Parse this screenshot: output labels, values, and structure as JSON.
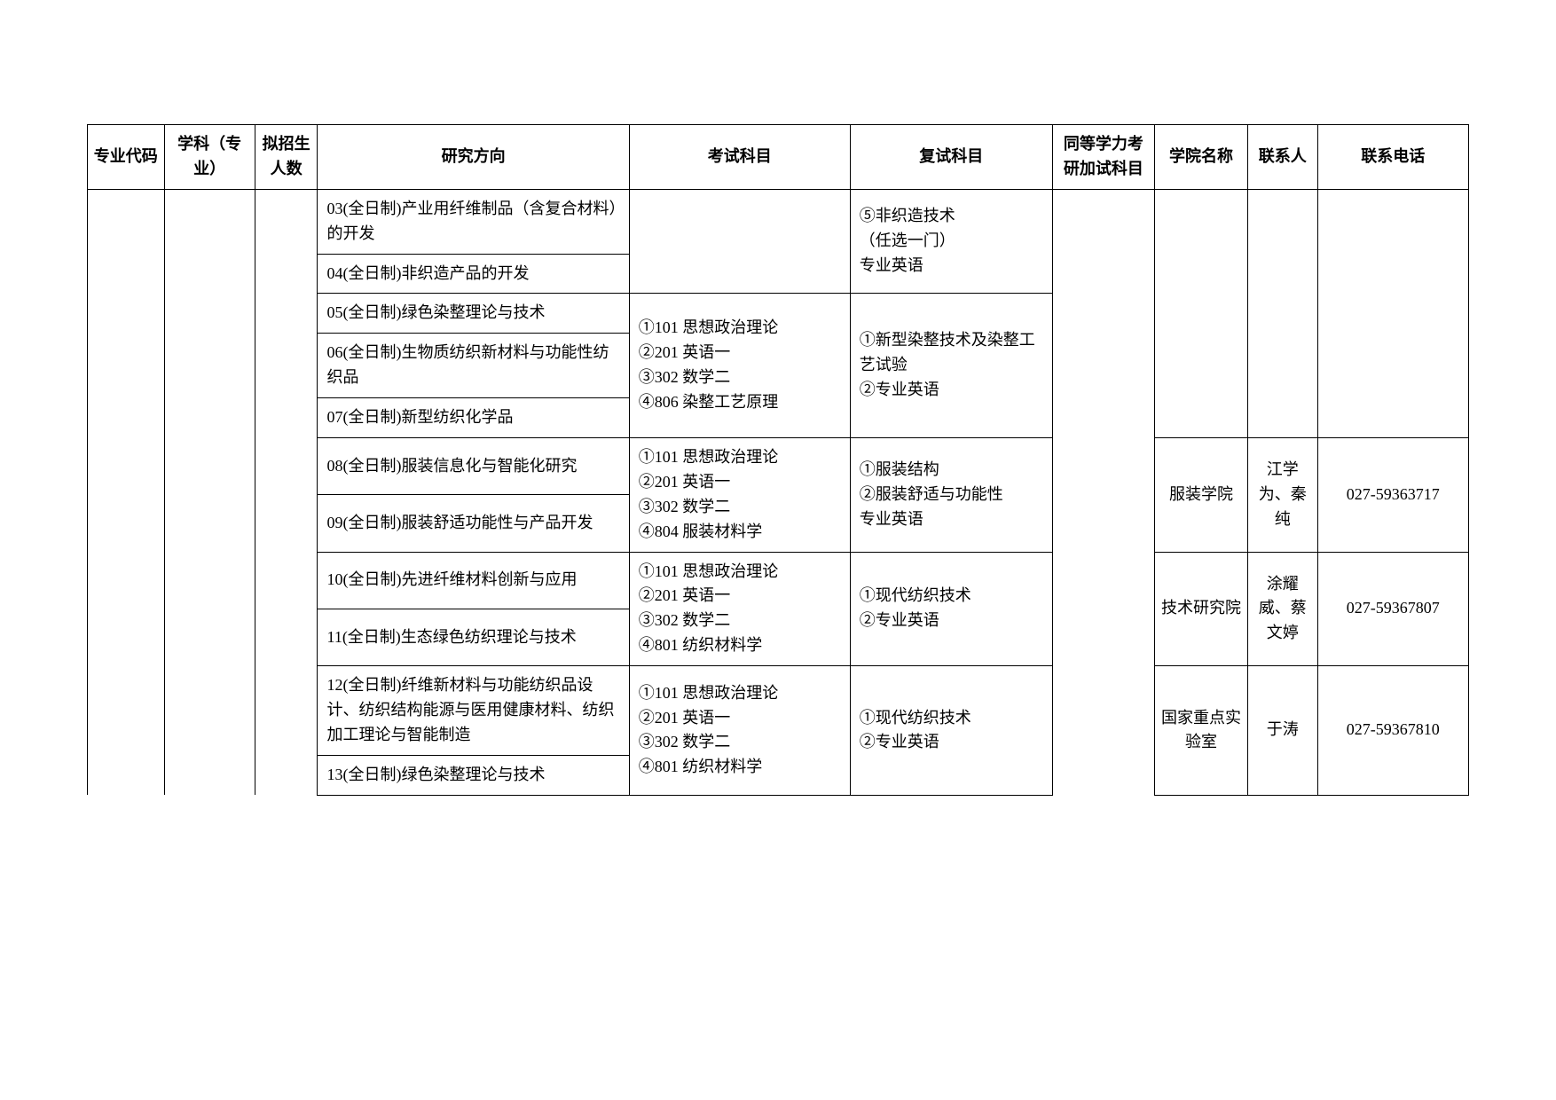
{
  "headers": {
    "code": "专业代码",
    "subject": "学科（专业）",
    "quota": "拟招生人数",
    "direction": "研究方向",
    "exam": "考试科目",
    "retest": "复试科目",
    "extra": "同等学力考研加试科目",
    "college": "学院名称",
    "contact": "联系人",
    "phone": "联系电话"
  },
  "rows": {
    "r1": {
      "direction": "03(全日制)产业用纤维制品（含复合材料）的开发",
      "retest": "⑤非织造技术\n（任选一门）\n专业英语"
    },
    "r2": {
      "direction": "04(全日制)非织造产品的开发"
    },
    "r3": {
      "direction": "05(全日制)绿色染整理论与技术",
      "exam": "①101 思想政治理论\n②201 英语一\n③302 数学二\n④806 染整工艺原理",
      "retest": "①新型染整技术及染整工艺试验\n②专业英语"
    },
    "r4": {
      "direction": "06(全日制)生物质纺织新材料与功能性纺织品"
    },
    "r5": {
      "direction": "07(全日制)新型纺织化学品"
    },
    "r6": {
      "direction": "08(全日制)服装信息化与智能化研究",
      "exam": "①101 思想政治理论\n②201 英语一\n③302 数学二\n④804 服装材料学",
      "retest": "①服装结构\n②服装舒适与功能性\n专业英语",
      "college": "服装学院",
      "contact": "江学为、秦纯",
      "phone": "027-59363717"
    },
    "r7": {
      "direction": "09(全日制)服装舒适功能性与产品开发"
    },
    "r8": {
      "direction": "10(全日制)先进纤维材料创新与应用",
      "exam": "①101 思想政治理论\n②201 英语一\n③302 数学二\n④801 纺织材料学",
      "retest": "①现代纺织技术\n②专业英语",
      "college": "技术研究院",
      "contact": "涂耀威、蔡文婷",
      "phone": "027-59367807"
    },
    "r9": {
      "direction": "11(全日制)生态绿色纺织理论与技术"
    },
    "r10": {
      "direction": "12(全日制)纤维新材料与功能纺织品设计、纺织结构能源与医用健康材料、纺织加工理论与智能制造",
      "exam": "①101 思想政治理论\n②201 英语一\n③302 数学二\n④801 纺织材料学",
      "retest": "①现代纺织技术\n②专业英语",
      "college": "国家重点实验室",
      "contact": "于涛",
      "phone": "027-59367810"
    },
    "r11": {
      "direction": "13(全日制)绿色染整理论与技术"
    }
  }
}
